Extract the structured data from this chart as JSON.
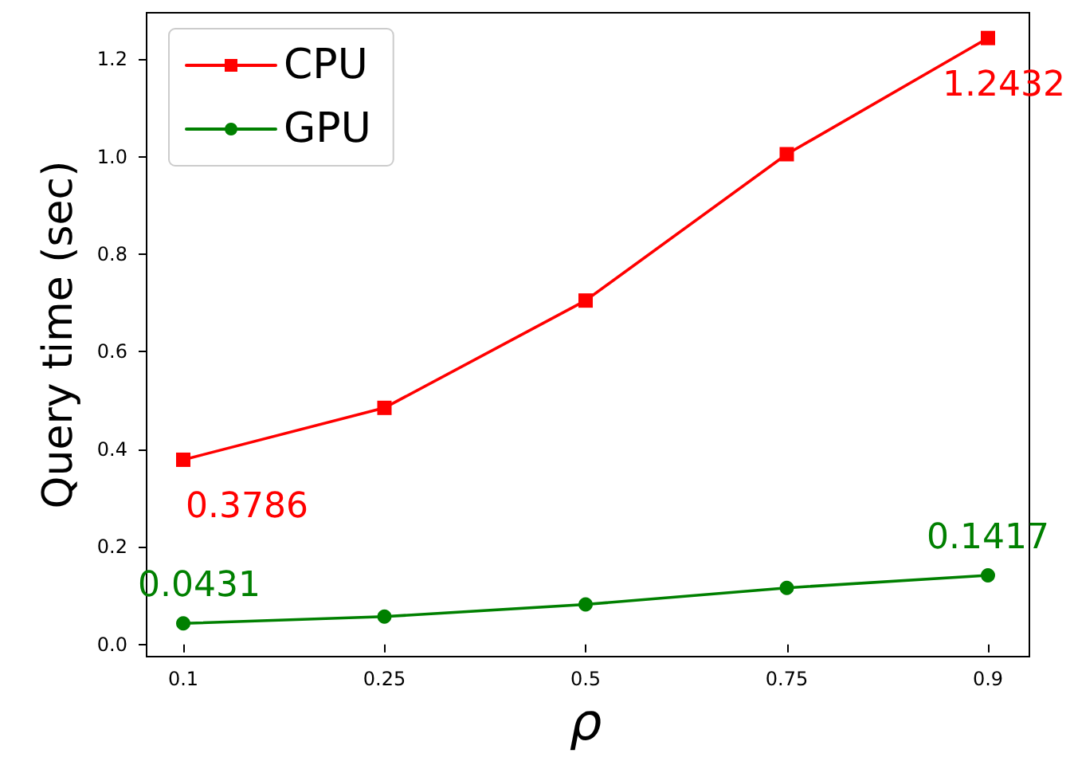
{
  "chart_data": {
    "type": "line",
    "xlabel": "ρ",
    "ylabel": "Query time (sec)",
    "categories": [
      "0.1",
      "0.25",
      "0.5",
      "0.75",
      "0.9"
    ],
    "series": [
      {
        "name": "CPU",
        "color": "#ff0000",
        "marker": "square",
        "values": [
          0.3786,
          0.485,
          0.705,
          1.005,
          1.2432
        ],
        "value_labels": [
          "0.3786",
          null,
          null,
          null,
          "1.2432"
        ]
      },
      {
        "name": "GPU",
        "color": "#008000",
        "marker": "circle",
        "values": [
          0.0431,
          0.057,
          0.082,
          0.116,
          0.1417
        ],
        "value_labels": [
          "0.0431",
          null,
          null,
          null,
          "0.1417"
        ]
      }
    ],
    "ylim": [
      -0.025,
      1.295
    ],
    "yticks": [
      {
        "value": 0,
        "label": "0.0"
      },
      {
        "value": 0.2,
        "label": "0.2"
      },
      {
        "value": 0.4,
        "label": "0.4"
      },
      {
        "value": 0.6,
        "label": "0.6"
      },
      {
        "value": 0.8,
        "label": "0.8"
      },
      {
        "value": 1,
        "label": "1.0"
      },
      {
        "value": 1.2,
        "label": "1.2"
      }
    ],
    "grid": false,
    "legend": "top left",
    "line_style": "solid"
  }
}
